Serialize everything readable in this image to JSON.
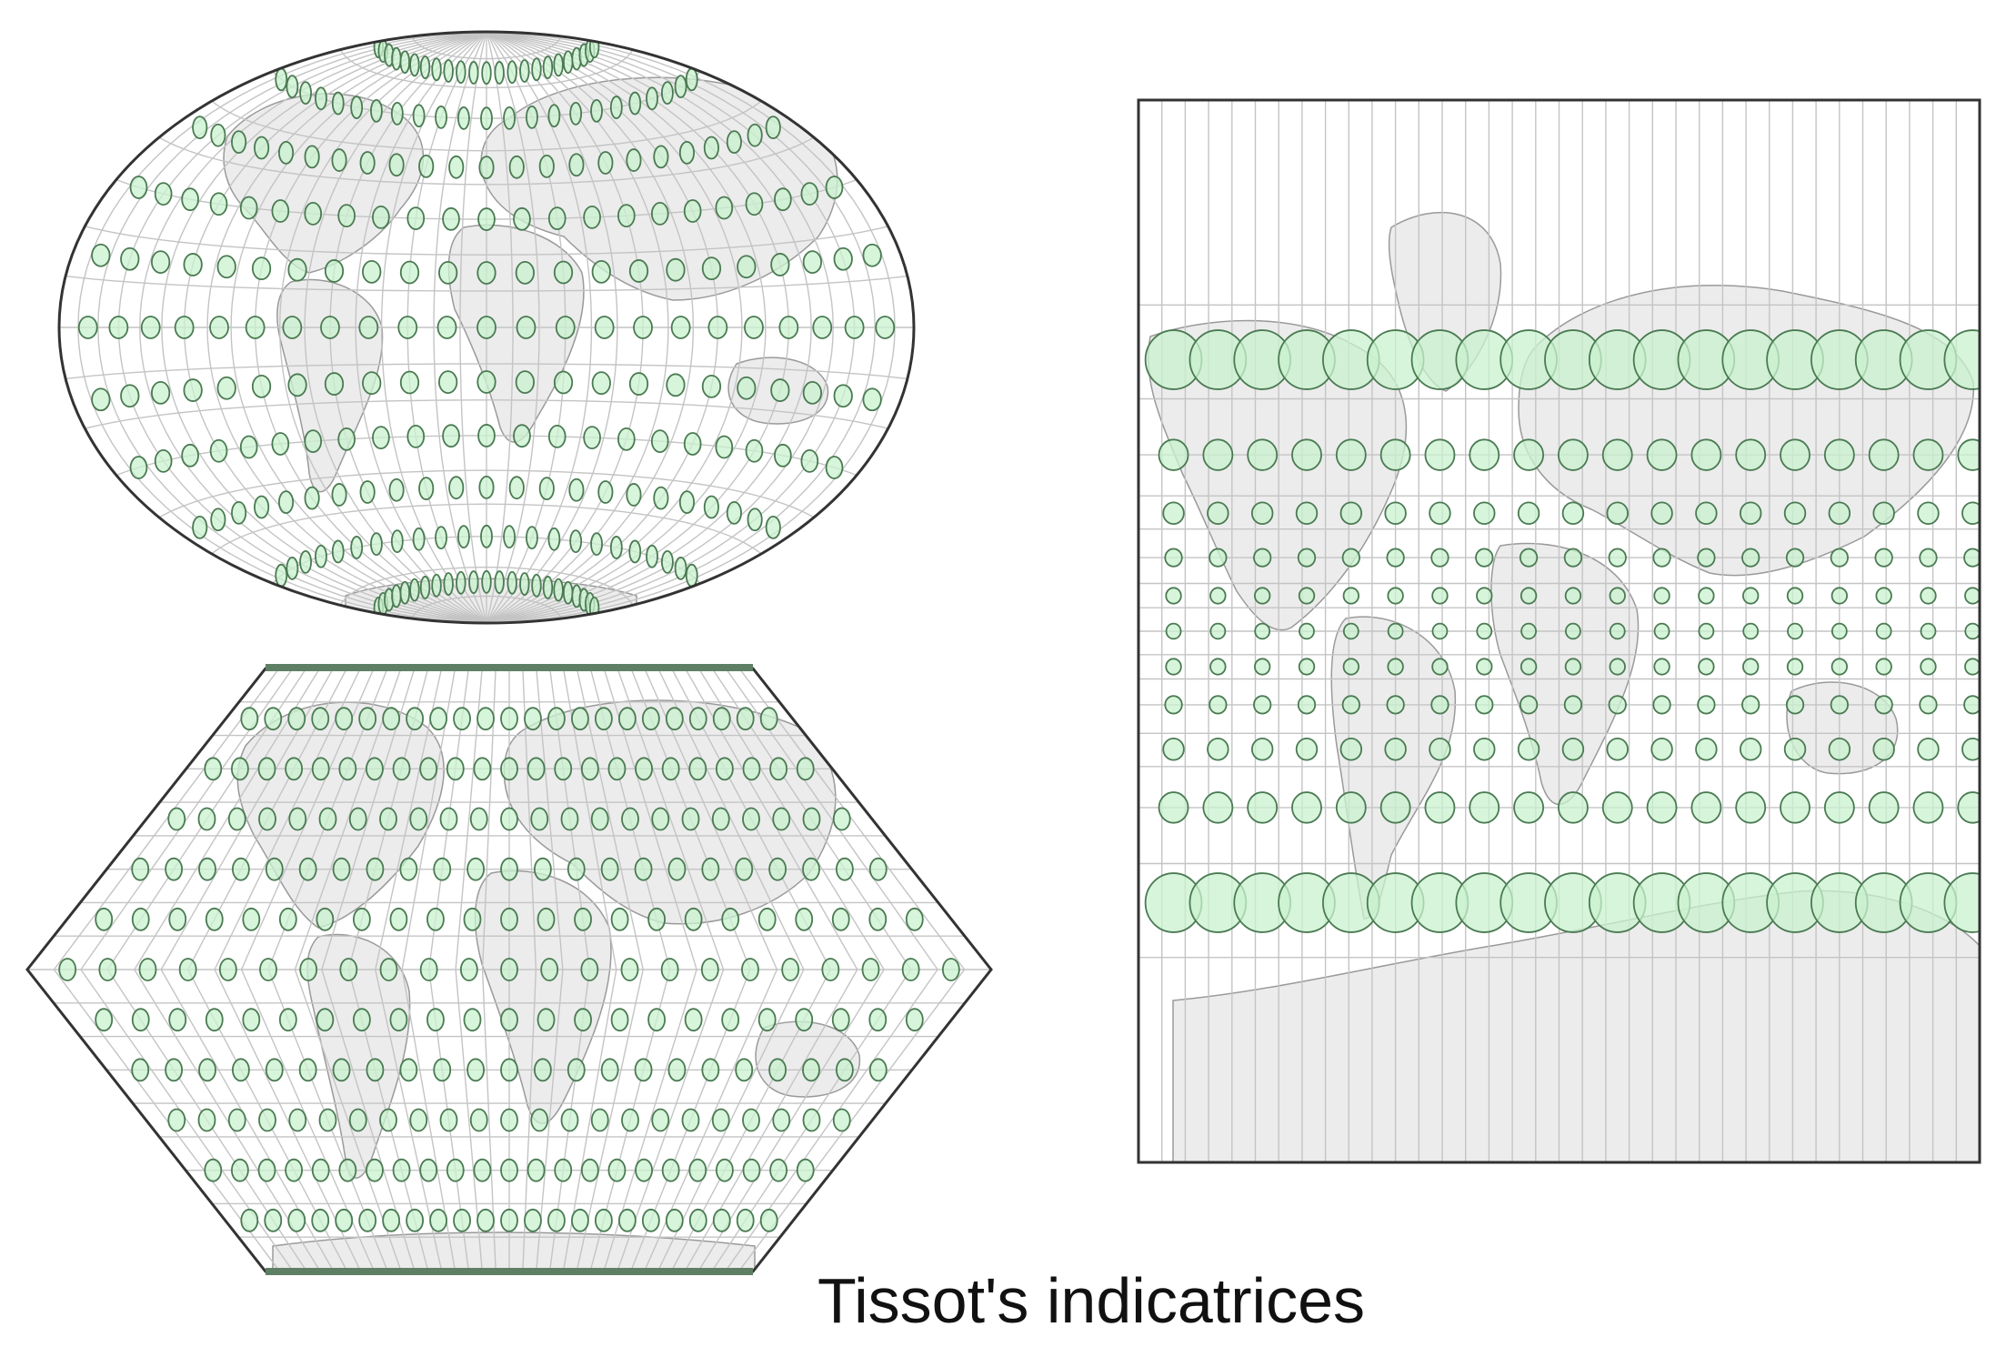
{
  "caption": "Tissot's indicatrices",
  "colors": {
    "background": "#ffffff",
    "grid": "#c4c4c4",
    "land": "#ececec",
    "coast": "#9a9a9a",
    "indicatrix_fill": "#c9f2cf",
    "indicatrix_stroke": "#4a7a52",
    "outline": "#333333"
  },
  "maps": [
    {
      "name": "hammer-map",
      "projection": "hammer",
      "indicatrices": true
    },
    {
      "name": "eckert-map",
      "projection": "eckert1",
      "indicatrices": true
    },
    {
      "name": "mercator-map",
      "projection": "mercator",
      "indicatrices": true
    }
  ]
}
